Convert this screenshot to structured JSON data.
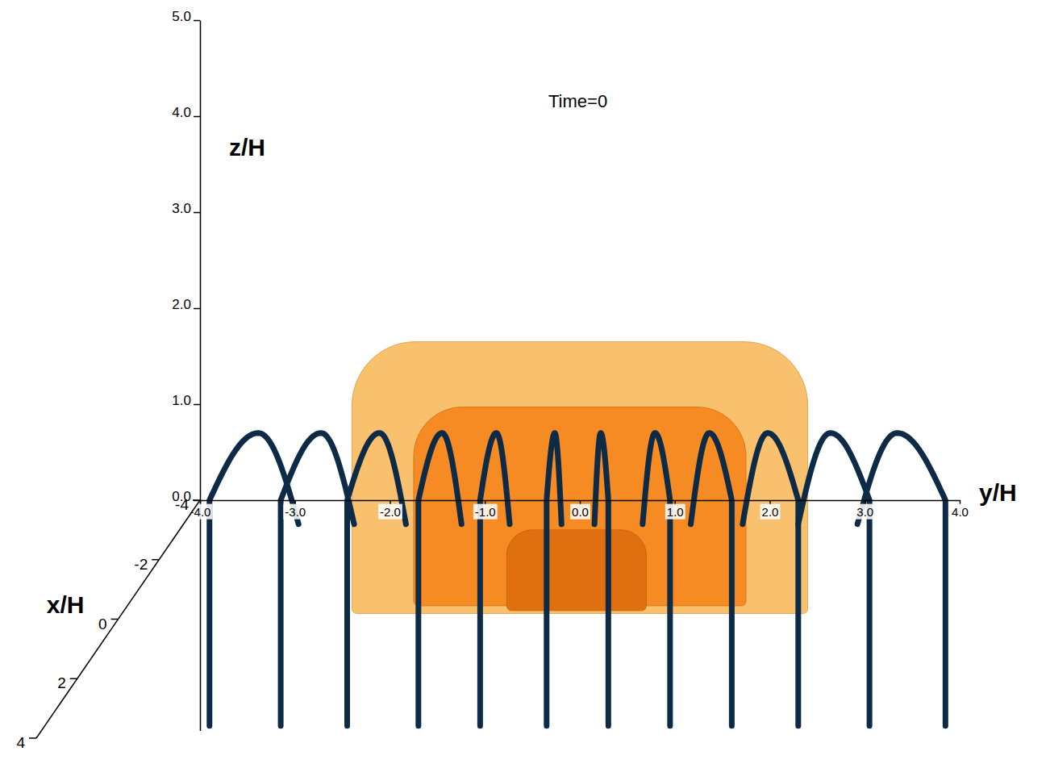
{
  "chart_data": {
    "type": "3d",
    "title": "Time=0",
    "x_label": "x/H",
    "y_label": "y/H",
    "z_label": "z/H",
    "xlim": [
      -4,
      4
    ],
    "xticks": [
      -4,
      -2,
      0,
      2,
      4
    ],
    "ylim": [
      -4,
      4
    ],
    "yticks": [
      {
        "value": -4,
        "label": "-4.0"
      },
      {
        "value": -3,
        "label": "-3.0"
      },
      {
        "value": -2,
        "label": "-2.0"
      },
      {
        "value": -1,
        "label": "-1.0"
      },
      {
        "value": 0,
        "label": "0.0"
      },
      {
        "value": 1,
        "label": "1.0"
      },
      {
        "value": 2,
        "label": "2.0"
      },
      {
        "value": 3,
        "label": "3.0"
      },
      {
        "value": 4,
        "label": "4.0"
      }
    ],
    "zlim": [
      -2.4,
      5
    ],
    "zticks": [
      {
        "value": 0,
        "label": "0.0"
      },
      {
        "value": 1,
        "label": "1.0"
      },
      {
        "value": 2,
        "label": "2.0"
      },
      {
        "value": 3,
        "label": "3.0"
      },
      {
        "value": 4,
        "label": "4.0"
      },
      {
        "value": 5,
        "label": "5.0"
      }
    ],
    "isosurfaces": [
      {
        "y": [
          -2.4,
          2.4
        ],
        "z": [
          -1.18,
          1.65
        ],
        "color": "#f8b85a"
      },
      {
        "y": [
          -1.75,
          1.75
        ],
        "z": [
          -1.1,
          0.97
        ],
        "color": "#f5861c"
      },
      {
        "y": [
          -0.77,
          0.7
        ],
        "z": [
          -1.15,
          -0.31
        ],
        "color": "#e06f10"
      }
    ],
    "field_lines": {
      "y": [
        -3.9,
        -3.15,
        -2.45,
        -1.7,
        -1.05,
        -0.35,
        0.3,
        0.95,
        1.6,
        2.3,
        3.05,
        3.85
      ],
      "z_top": 0.7,
      "z_bottom": -2.35,
      "color": "#0d2b47"
    }
  }
}
